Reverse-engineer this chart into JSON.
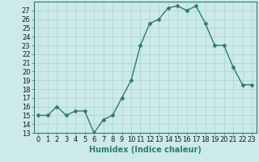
{
  "xlabel": "Humidex (Indice chaleur)",
  "x": [
    0,
    1,
    2,
    3,
    4,
    5,
    6,
    7,
    8,
    9,
    10,
    11,
    12,
    13,
    14,
    15,
    16,
    17,
    18,
    19,
    20,
    21,
    22,
    23
  ],
  "y": [
    15,
    15,
    16,
    15,
    15.5,
    15.5,
    13,
    14.5,
    15,
    17,
    19,
    23,
    25.5,
    26,
    27.3,
    27.5,
    27,
    27.5,
    25.5,
    23,
    23,
    20.5,
    18.5,
    18.5
  ],
  "line_color": "#2d7d6d",
  "marker": "D",
  "marker_size": 2.5,
  "bg_color": "#cceae7",
  "grid_color": "#aad4d0",
  "ylim_min": 13,
  "ylim_max": 28,
  "yticks": [
    13,
    14,
    15,
    16,
    17,
    18,
    19,
    20,
    21,
    22,
    23,
    24,
    25,
    26,
    27
  ],
  "xticks": [
    0,
    1,
    2,
    3,
    4,
    5,
    6,
    7,
    8,
    9,
    10,
    11,
    12,
    13,
    14,
    15,
    16,
    17,
    18,
    19,
    20,
    21,
    22,
    23
  ],
  "xlabel_fontsize": 7,
  "tick_fontsize": 6,
  "line_width": 1.0,
  "spine_color": "#2d7d6d"
}
